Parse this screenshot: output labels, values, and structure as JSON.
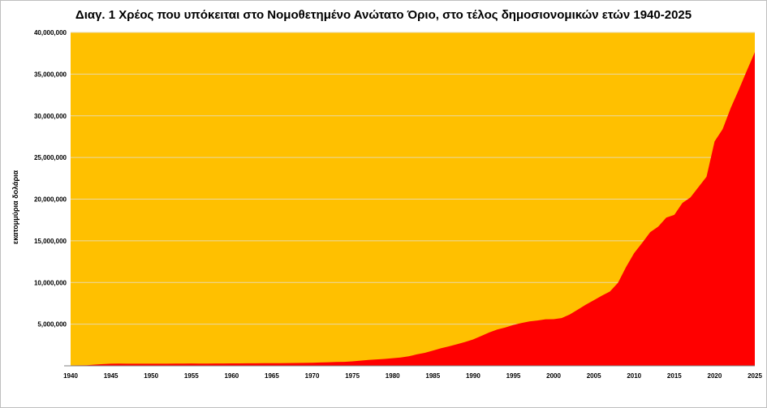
{
  "chart_data": {
    "type": "area",
    "title": "Διαγ. 1     Χρέος που υπόκειται στο Νομοθετημένο  Ανώτατο Όριο, στο τέλος δημοσιονομικών ετών 1940-2025",
    "xlabel": "",
    "ylabel": "εκατομμύρια δολάρια",
    "xlim": [
      1940,
      2025
    ],
    "ylim": [
      0,
      40000000
    ],
    "x_ticks": [
      1940,
      1945,
      1950,
      1955,
      1960,
      1965,
      1970,
      1975,
      1980,
      1985,
      1990,
      1995,
      2000,
      2005,
      2010,
      2015,
      2020,
      2025
    ],
    "x_tick_labels": [
      "1940",
      "1945",
      "1950",
      "1955",
      "1960",
      "1965",
      "1970",
      "1975",
      "1980",
      "1985",
      "1990",
      "1995",
      "2000",
      "2005",
      "2010",
      "2015",
      "2020",
      "2025"
    ],
    "y_ticks": [
      5000000,
      10000000,
      15000000,
      20000000,
      25000000,
      30000000,
      35000000,
      40000000
    ],
    "y_tick_labels": [
      "5,000,000",
      "10,000,000",
      "15,000,000",
      "20,000,000",
      "25,000,000",
      "30,000,000",
      "35,000,000",
      "40,000,000"
    ],
    "colors": {
      "plot_background": "#ffc000",
      "area_fill": "#ff0000",
      "gridline": "#e8d9a8"
    },
    "series": [
      {
        "name": "Χρέος",
        "x": [
          1940,
          1942,
          1943,
          1944,
          1945,
          1946,
          1947,
          1948,
          1949,
          1950,
          1951,
          1952,
          1953,
          1954,
          1955,
          1956,
          1957,
          1958,
          1959,
          1960,
          1961,
          1962,
          1963,
          1964,
          1965,
          1966,
          1967,
          1968,
          1969,
          1970,
          1971,
          1972,
          1973,
          1974,
          1975,
          1976,
          1977,
          1978,
          1979,
          1980,
          1981,
          1982,
          1983,
          1984,
          1985,
          1986,
          1987,
          1988,
          1989,
          1990,
          1991,
          1992,
          1993,
          1994,
          1995,
          1996,
          1997,
          1998,
          1999,
          2000,
          2001,
          2002,
          2003,
          2004,
          2005,
          2006,
          2007,
          2008,
          2009,
          2010,
          2011,
          2012,
          2013,
          2014,
          2015,
          2016,
          2017,
          2018,
          2019,
          2020,
          2021,
          2022,
          2023,
          2024,
          2025
        ],
        "values": [
          43000,
          75000,
          140000,
          210000,
          260000,
          270000,
          258000,
          250000,
          250000,
          255000,
          255000,
          259000,
          266000,
          271000,
          274000,
          273000,
          271000,
          279000,
          285000,
          286000,
          289000,
          299000,
          306000,
          313000,
          316000,
          320000,
          323000,
          344000,
          353000,
          370000,
          398000,
          428000,
          458000,
          476000,
          534000,
          620000,
          700000,
          772000,
          828000,
          908000,
          998000,
          1140000,
          1375000,
          1560000,
          1820000,
          2110000,
          2340000,
          2590000,
          2860000,
          3160000,
          3580000,
          4000000,
          4350000,
          4600000,
          4900000,
          5130000,
          5330000,
          5440000,
          5580000,
          5590000,
          5730000,
          6160000,
          6740000,
          7330000,
          7870000,
          8420000,
          8920000,
          9960000,
          11850000,
          13510000,
          14750000,
          16030000,
          16700000,
          17790000,
          18110000,
          19540000,
          20210000,
          21450000,
          22690000,
          26920000,
          28400000,
          30930000,
          33100000,
          35400000,
          37640000
        ]
      }
    ]
  }
}
